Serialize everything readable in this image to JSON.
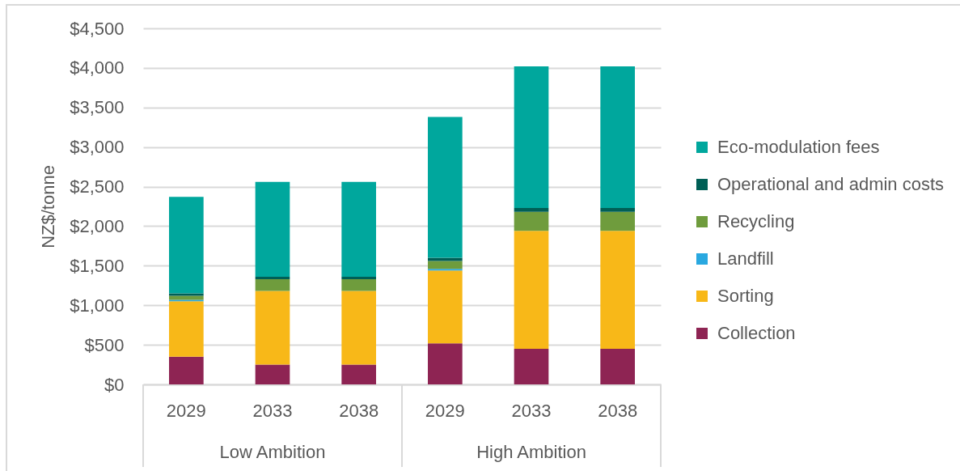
{
  "chart_data": {
    "type": "bar",
    "stacked": true,
    "ylabel": "NZ$/tonne",
    "categories": [
      "2029",
      "2033",
      "2038",
      "2029",
      "2033",
      "2038"
    ],
    "annotations": [
      "Low Ambition",
      "High Ambition"
    ],
    "series": [
      {
        "name": "Collection",
        "color": "#8e2453",
        "values": [
          350,
          250,
          250,
          520,
          450,
          450
        ]
      },
      {
        "name": "Sorting",
        "color": "#f8b818",
        "values": [
          700,
          930,
          930,
          920,
          1490,
          1490
        ]
      },
      {
        "name": "Landfill",
        "color": "#29a8e0",
        "values": [
          20,
          null,
          null,
          20,
          null,
          null
        ]
      },
      {
        "name": "Recycling",
        "color": "#6f9c3d",
        "values": [
          50,
          150,
          150,
          100,
          240,
          240
        ]
      },
      {
        "name": "Operational and admin costs",
        "color": "#005f56",
        "values": [
          30,
          30,
          30,
          40,
          50,
          50
        ]
      },
      {
        "name": "Eco-modulation fees",
        "color": "#00a79d",
        "values": [
          1220,
          1200,
          1200,
          1780,
          1790,
          1790
        ]
      }
    ],
    "ylim": [
      0,
      4500
    ],
    "yticks": [
      {
        "value": 0,
        "label": "$0"
      },
      {
        "value": 500,
        "label": "$500"
      },
      {
        "value": 1000,
        "label": "$1,000"
      },
      {
        "value": 1500,
        "label": "$1,500"
      },
      {
        "value": 2000,
        "label": "$2,000"
      },
      {
        "value": 2500,
        "label": "$2,500"
      },
      {
        "value": 3000,
        "label": "$3,000"
      },
      {
        "value": 3500,
        "label": "$3,500"
      },
      {
        "value": 4000,
        "label": "$4,000"
      },
      {
        "value": 4500,
        "label": "$4,500"
      }
    ],
    "grid": "y",
    "legend": "right"
  }
}
